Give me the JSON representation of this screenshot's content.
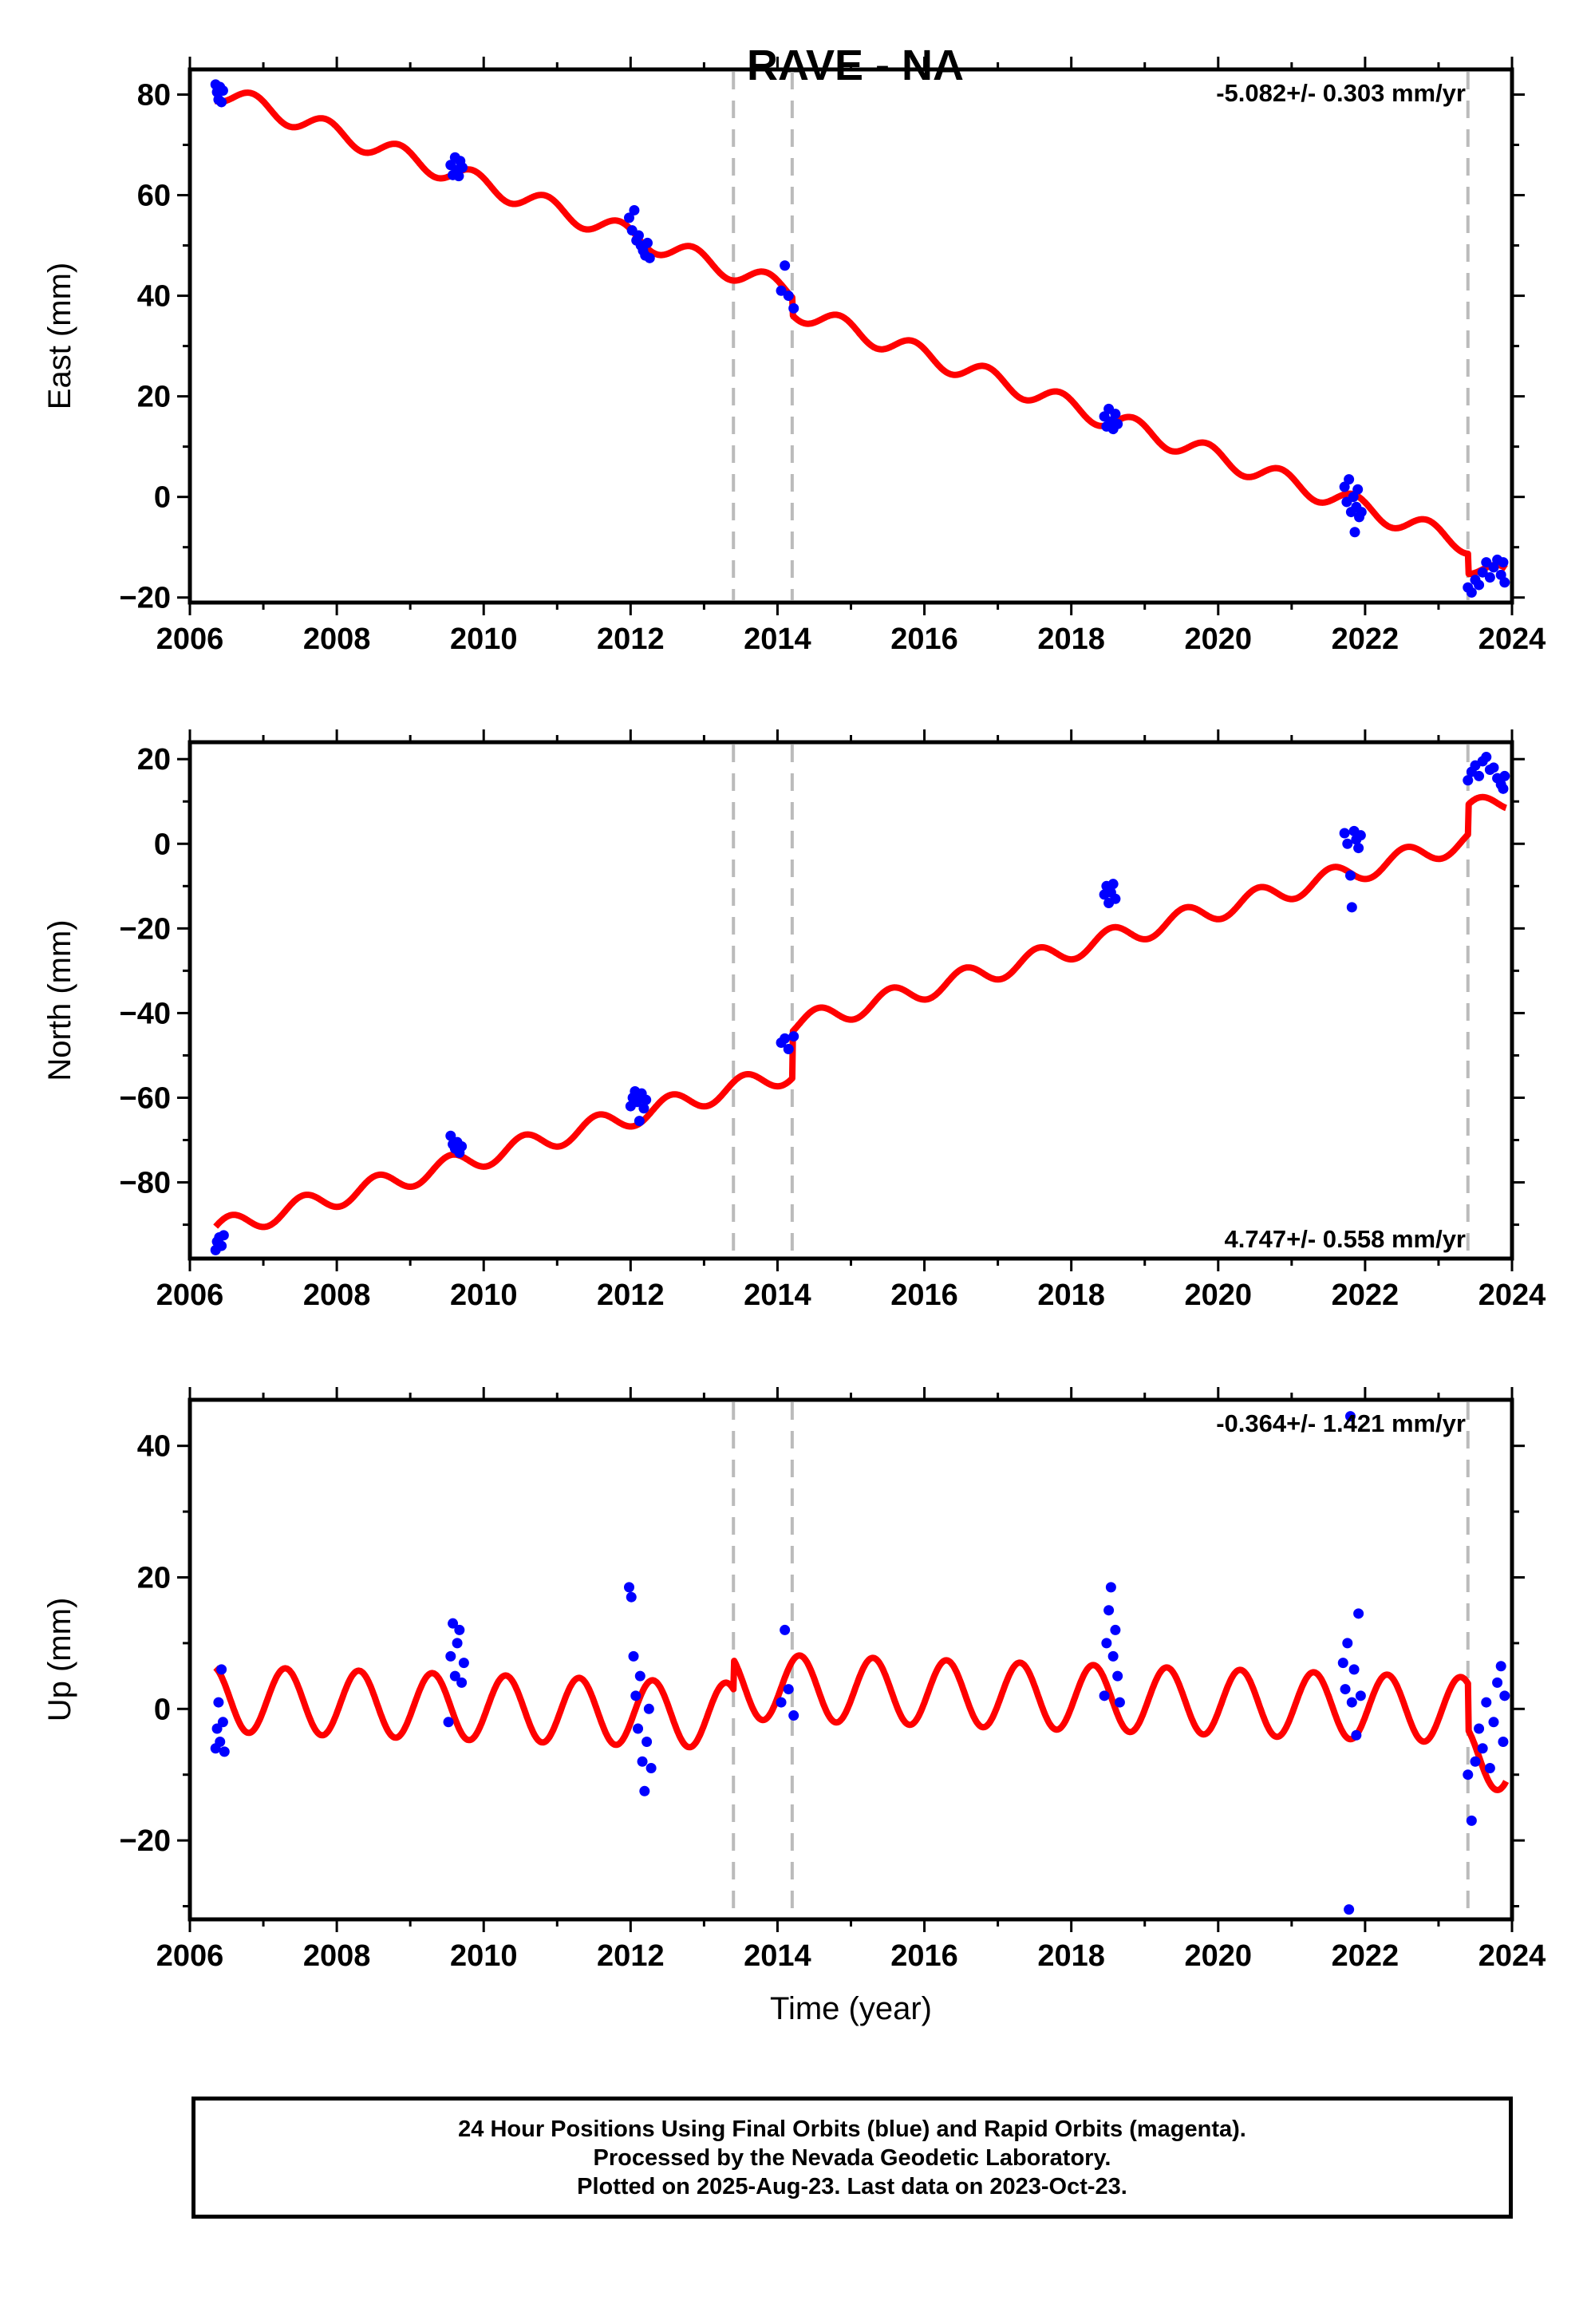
{
  "chart_data": [
    {
      "type": "scatter",
      "panel": "east",
      "title": "RAVE - NA",
      "xlabel": "",
      "ylabel": "East (mm)",
      "xlim": [
        2006.0,
        2024.0
      ],
      "ylim": [
        -21,
        85
      ],
      "xticks": [
        2006,
        2008,
        2010,
        2012,
        2014,
        2016,
        2018,
        2020,
        2022,
        2024
      ],
      "xtick_labels": [
        "2006",
        "2008",
        "2010",
        "2012",
        "2014",
        "2016",
        "2018",
        "2020",
        "2022",
        "2024"
      ],
      "yticks": [
        -20,
        0,
        20,
        40,
        60,
        80
      ],
      "ytick_labels": [
        "−20",
        "0",
        "20",
        "40",
        "60",
        "80"
      ],
      "rate_label": "-5.082+/- 0.303 mm/yr",
      "rate_position": "top-right",
      "breaks": [
        2013.4,
        2014.2,
        2023.4
      ],
      "model": {
        "rate": -5.082,
        "t0": 2006.4,
        "offset0": 80.5,
        "amp": 2.0,
        "phase": 0.6,
        "steps": [
          {
            "t": 2014.2,
            "dy": -3.5
          },
          {
            "t": 2023.4,
            "dy": -4.0
          }
        ]
      },
      "series": [
        {
          "name": "Final Orbits",
          "color": "#0000ff",
          "points": [
            [
              2006.35,
              82.0
            ],
            [
              2006.37,
              80.5
            ],
            [
              2006.39,
              79.0
            ],
            [
              2006.41,
              81.5
            ],
            [
              2006.43,
              78.5
            ],
            [
              2006.45,
              80.8
            ],
            [
              2009.55,
              66.0
            ],
            [
              2009.58,
              64.0
            ],
            [
              2009.61,
              67.5
            ],
            [
              2009.63,
              65.0
            ],
            [
              2009.66,
              63.8
            ],
            [
              2009.68,
              66.8
            ],
            [
              2009.71,
              65.5
            ],
            [
              2011.98,
              55.5
            ],
            [
              2012.02,
              53.0
            ],
            [
              2012.05,
              57.0
            ],
            [
              2012.08,
              51.0
            ],
            [
              2012.11,
              52.0
            ],
            [
              2012.14,
              50.0
            ],
            [
              2012.17,
              49.0
            ],
            [
              2012.2,
              48.0
            ],
            [
              2012.23,
              50.5
            ],
            [
              2012.26,
              47.5
            ],
            [
              2014.05,
              41.0
            ],
            [
              2014.1,
              46.0
            ],
            [
              2014.15,
              40.0
            ],
            [
              2014.22,
              37.5
            ],
            [
              2018.45,
              16.0
            ],
            [
              2018.48,
              14.0
            ],
            [
              2018.51,
              17.5
            ],
            [
              2018.54,
              15.0
            ],
            [
              2018.57,
              13.5
            ],
            [
              2018.6,
              16.5
            ],
            [
              2018.63,
              14.5
            ],
            [
              2021.72,
              2.0
            ],
            [
              2021.75,
              -1.0
            ],
            [
              2021.78,
              3.5
            ],
            [
              2021.81,
              -3.0
            ],
            [
              2021.84,
              0.0
            ],
            [
              2021.86,
              -7.0
            ],
            [
              2021.88,
              -2.0
            ],
            [
              2021.9,
              1.5
            ],
            [
              2021.92,
              -4.0
            ],
            [
              2021.95,
              -3.0
            ],
            [
              2023.4,
              -18.0
            ],
            [
              2023.45,
              -19.0
            ],
            [
              2023.5,
              -16.5
            ],
            [
              2023.55,
              -17.5
            ],
            [
              2023.6,
              -15.0
            ],
            [
              2023.65,
              -13.0
            ],
            [
              2023.7,
              -16.0
            ],
            [
              2023.75,
              -14.0
            ],
            [
              2023.8,
              -12.5
            ],
            [
              2023.85,
              -15.5
            ],
            [
              2023.88,
              -13.0
            ],
            [
              2023.9,
              -17.0
            ]
          ]
        }
      ]
    },
    {
      "type": "scatter",
      "panel": "north",
      "xlabel": "",
      "ylabel": "North (mm)",
      "xlim": [
        2006.0,
        2024.0
      ],
      "ylim": [
        -98,
        24
      ],
      "xticks": [
        2006,
        2008,
        2010,
        2012,
        2014,
        2016,
        2018,
        2020,
        2022,
        2024
      ],
      "xtick_labels": [
        "2006",
        "2008",
        "2010",
        "2012",
        "2014",
        "2016",
        "2018",
        "2020",
        "2022",
        "2024"
      ],
      "yticks": [
        -80,
        -60,
        -40,
        -20,
        0,
        20
      ],
      "ytick_labels": [
        "−80",
        "−60",
        "−40",
        "−20",
        "0",
        "20"
      ],
      "rate_label": "4.747+/- 0.558 mm/yr",
      "rate_position": "bottom-right",
      "breaks": [
        2013.4,
        2014.2,
        2023.4
      ],
      "model": {
        "rate": 4.747,
        "t0": 2006.4,
        "offset0": -91.0,
        "amp": 2.5,
        "phase": 0.3,
        "steps": [
          {
            "t": 2014.2,
            "dy": 11.0
          },
          {
            "t": 2023.4,
            "dy": 7.0
          }
        ]
      },
      "series": [
        {
          "name": "Final Orbits",
          "color": "#0000ff",
          "points": [
            [
              2006.35,
              -96.0
            ],
            [
              2006.37,
              -94.0
            ],
            [
              2006.4,
              -93.0
            ],
            [
              2006.43,
              -95.0
            ],
            [
              2006.46,
              -92.5
            ],
            [
              2009.55,
              -69.0
            ],
            [
              2009.58,
              -71.0
            ],
            [
              2009.61,
              -72.0
            ],
            [
              2009.64,
              -70.5
            ],
            [
              2009.67,
              -73.0
            ],
            [
              2009.7,
              -71.5
            ],
            [
              2012.0,
              -62.0
            ],
            [
              2012.03,
              -60.0
            ],
            [
              2012.06,
              -58.5
            ],
            [
              2012.09,
              -61.0
            ],
            [
              2012.12,
              -65.5
            ],
            [
              2012.15,
              -59.0
            ],
            [
              2012.18,
              -62.5
            ],
            [
              2012.21,
              -60.5
            ],
            [
              2014.05,
              -47.0
            ],
            [
              2014.1,
              -46.0
            ],
            [
              2014.15,
              -48.5
            ],
            [
              2014.22,
              -45.5
            ],
            [
              2018.45,
              -12.0
            ],
            [
              2018.48,
              -10.0
            ],
            [
              2018.51,
              -14.0
            ],
            [
              2018.54,
              -11.5
            ],
            [
              2018.57,
              -9.5
            ],
            [
              2018.6,
              -13.0
            ],
            [
              2021.72,
              2.5
            ],
            [
              2021.76,
              0.0
            ],
            [
              2021.8,
              -7.5
            ],
            [
              2021.82,
              -15.0
            ],
            [
              2021.85,
              3.0
            ],
            [
              2021.88,
              1.0
            ],
            [
              2021.91,
              -1.0
            ],
            [
              2021.94,
              2.0
            ],
            [
              2023.4,
              15.0
            ],
            [
              2023.45,
              17.0
            ],
            [
              2023.5,
              18.5
            ],
            [
              2023.55,
              16.0
            ],
            [
              2023.6,
              19.5
            ],
            [
              2023.65,
              20.5
            ],
            [
              2023.7,
              17.5
            ],
            [
              2023.75,
              18.0
            ],
            [
              2023.8,
              15.5
            ],
            [
              2023.85,
              14.0
            ],
            [
              2023.88,
              13.0
            ],
            [
              2023.9,
              16.0
            ]
          ]
        }
      ]
    },
    {
      "type": "scatter",
      "panel": "up",
      "xlabel": "Time (year)",
      "ylabel": "Up (mm)",
      "xlim": [
        2006.0,
        2024.0
      ],
      "ylim": [
        -32,
        47
      ],
      "xticks": [
        2006,
        2008,
        2010,
        2012,
        2014,
        2016,
        2018,
        2020,
        2022,
        2024
      ],
      "xtick_labels": [
        "2006",
        "2008",
        "2010",
        "2012",
        "2014",
        "2016",
        "2018",
        "2020",
        "2022",
        "2024"
      ],
      "yticks": [
        -20,
        0,
        20,
        40
      ],
      "ytick_labels": [
        "−20",
        "0",
        "20",
        "40"
      ],
      "rate_label": "-0.364+/- 1.421 mm/yr",
      "rate_position": "top-right",
      "breaks": [
        2013.4,
        2014.2,
        2023.4
      ],
      "model": {
        "rate": -0.364,
        "t0": 2006.4,
        "offset0": 1.5,
        "amp": 5.0,
        "phase": 0.05,
        "steps": [
          {
            "t": 2013.4,
            "dy": 4.5
          },
          {
            "t": 2023.4,
            "dy": -7.0
          }
        ]
      },
      "series": [
        {
          "name": "Final Orbits",
          "color": "#0000ff",
          "points": [
            [
              2006.35,
              -6.0
            ],
            [
              2006.37,
              -3.0
            ],
            [
              2006.39,
              1.0
            ],
            [
              2006.41,
              -5.0
            ],
            [
              2006.43,
              6.0
            ],
            [
              2006.45,
              -2.0
            ],
            [
              2006.47,
              -6.5
            ],
            [
              2009.52,
              -2.0
            ],
            [
              2009.55,
              8.0
            ],
            [
              2009.58,
              13.0
            ],
            [
              2009.61,
              5.0
            ],
            [
              2009.64,
              10.0
            ],
            [
              2009.67,
              12.0
            ],
            [
              2009.7,
              4.0
            ],
            [
              2009.73,
              7.0
            ],
            [
              2011.98,
              18.5
            ],
            [
              2012.01,
              17.0
            ],
            [
              2012.04,
              8.0
            ],
            [
              2012.07,
              2.0
            ],
            [
              2012.1,
              -3.0
            ],
            [
              2012.13,
              5.0
            ],
            [
              2012.16,
              -8.0
            ],
            [
              2012.19,
              -12.5
            ],
            [
              2012.22,
              -5.0
            ],
            [
              2012.25,
              0.0
            ],
            [
              2012.28,
              -9.0
            ],
            [
              2014.05,
              1.0
            ],
            [
              2014.1,
              12.0
            ],
            [
              2014.15,
              3.0
            ],
            [
              2014.22,
              -1.0
            ],
            [
              2018.45,
              2.0
            ],
            [
              2018.48,
              10.0
            ],
            [
              2018.51,
              15.0
            ],
            [
              2018.54,
              18.5
            ],
            [
              2018.57,
              8.0
            ],
            [
              2018.6,
              12.0
            ],
            [
              2018.63,
              5.0
            ],
            [
              2018.66,
              1.0
            ],
            [
              2021.7,
              7.0
            ],
            [
              2021.73,
              3.0
            ],
            [
              2021.76,
              10.0
            ],
            [
              2021.78,
              -30.5
            ],
            [
              2021.8,
              44.5
            ],
            [
              2021.82,
              1.0
            ],
            [
              2021.85,
              6.0
            ],
            [
              2021.88,
              -4.0
            ],
            [
              2021.91,
              14.5
            ],
            [
              2021.94,
              2.0
            ],
            [
              2023.4,
              -10.0
            ],
            [
              2023.45,
              -17.0
            ],
            [
              2023.5,
              -8.0
            ],
            [
              2023.55,
              -3.0
            ],
            [
              2023.6,
              -6.0
            ],
            [
              2023.65,
              1.0
            ],
            [
              2023.7,
              -9.0
            ],
            [
              2023.75,
              -2.0
            ],
            [
              2023.8,
              4.0
            ],
            [
              2023.85,
              6.5
            ],
            [
              2023.88,
              -5.0
            ],
            [
              2023.9,
              2.0
            ]
          ]
        }
      ]
    }
  ],
  "caption": {
    "line1": "24 Hour Positions Using Final Orbits (blue) and Rapid Orbits (magenta).",
    "line2": "Processed by the Nevada Geodetic Laboratory.",
    "line3": "Plotted on 2025-Aug-23. Last data on 2023-Oct-23."
  },
  "colors": {
    "points": "#0000ff",
    "model": "#ff0000",
    "breaks": "#bbbbbb",
    "frame": "#000000"
  }
}
